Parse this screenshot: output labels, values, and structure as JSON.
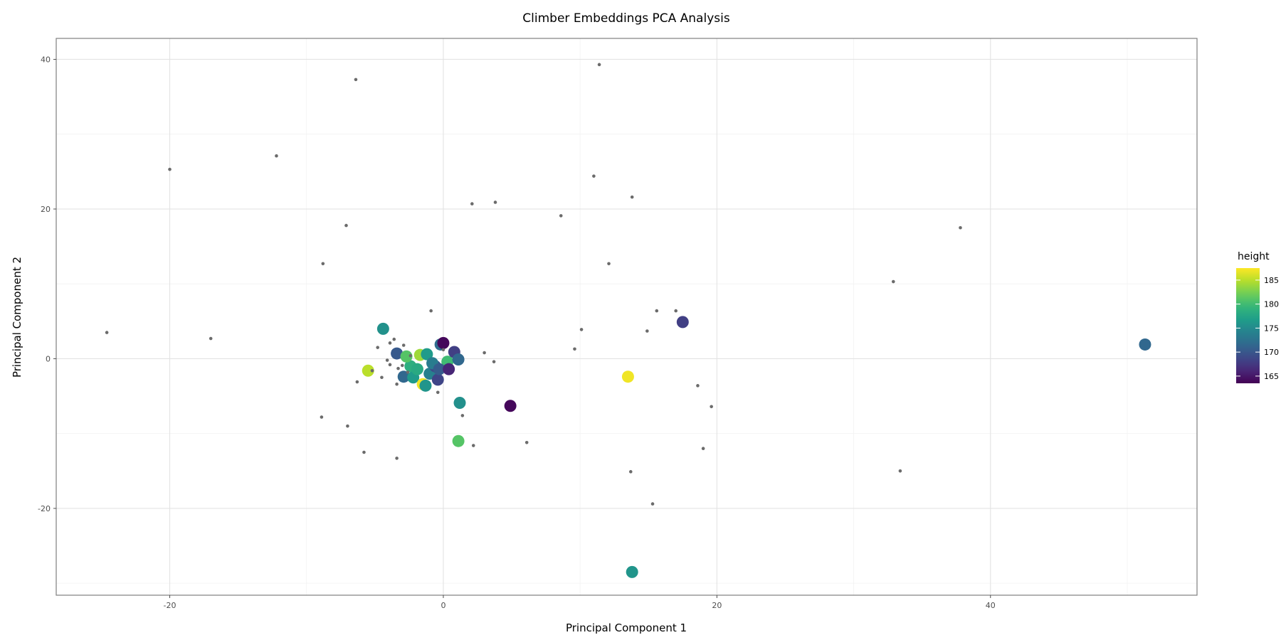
{
  "chart_data": {
    "type": "scatter",
    "title": "Climber Embeddings PCA Analysis",
    "xlabel": "Principal Component 1",
    "ylabel": "Principal Component 2",
    "xlim": [
      -28.3,
      55.1
    ],
    "ylim": [
      -31.6,
      42.8
    ],
    "x_ticks": [
      -20,
      0,
      20,
      40
    ],
    "y_ticks": [
      -20,
      0,
      20,
      40
    ],
    "x_tick_labels": [
      "-20",
      "0",
      "20",
      "40"
    ],
    "y_tick_labels": [
      "-20",
      "0",
      "20",
      "40"
    ],
    "grid": true,
    "background_points_color": "#6b6b6b",
    "legend": {
      "title": "height",
      "position": "right",
      "ticks": [
        165,
        170,
        175,
        180,
        185
      ],
      "tick_labels": [
        "165",
        "170",
        "175",
        "180",
        "185"
      ],
      "range": [
        163.5,
        187.5
      ],
      "colormap": "viridis"
    },
    "series": [
      {
        "name": "",
        "marker": "small-grey",
        "x": [
          -24.6,
          -20,
          -12.2,
          -17,
          -6.4,
          -7.1,
          -8.8,
          -8.9,
          -7,
          -5.8,
          -3.4,
          -6.3,
          -3.4,
          -5.2,
          -4.8,
          -4.5,
          -3.9,
          -4.1,
          -3.6,
          -3.9,
          -3.3,
          -2.9,
          -2.6,
          -2.4,
          -3,
          -0.9,
          -0.4,
          0,
          1.4,
          2.2,
          3,
          3.7,
          2.1,
          3.8,
          6.1,
          8.6,
          9.6,
          10.1,
          11,
          11.4,
          12.1,
          13.7,
          13.8,
          14.9,
          15.6,
          15.3,
          17,
          18.6,
          19,
          19.6,
          32.9,
          33.4,
          37.8
        ],
        "y": [
          3.5,
          25.3,
          27.1,
          2.7,
          37.3,
          17.8,
          12.7,
          -7.8,
          -9,
          -12.5,
          -13.3,
          -3.1,
          -3.4,
          -1.6,
          1.5,
          -2.5,
          2.1,
          -0.2,
          2.6,
          -0.8,
          -1.3,
          1.8,
          -1.8,
          0.4,
          -0.9,
          6.4,
          -4.5,
          1.2,
          -7.6,
          -11.6,
          0.8,
          -0.4,
          20.7,
          20.9,
          -11.2,
          19.1,
          1.3,
          3.9,
          24.4,
          39.3,
          12.7,
          -15.1,
          21.6,
          3.7,
          6.4,
          -19.4,
          6.4,
          -3.6,
          -12,
          -6.4,
          10.3,
          -15,
          17.5
        ]
      },
      {
        "name": "",
        "marker": "large-colored",
        "x": [
          -4.4,
          -3.4,
          -2.9,
          -2.4,
          -2.2,
          -1.7,
          -1.5,
          -1.3,
          -1,
          -0.6,
          -0.4,
          -0.2,
          0,
          0.3,
          0.8,
          1.1,
          1.2,
          1.1,
          4.9,
          13.5,
          17.5,
          13.8,
          51.3,
          -5.5,
          -1.9,
          -2.7,
          -1.2,
          -0.8,
          -0.3,
          0.4
        ],
        "y": [
          4,
          0.7,
          -2.4,
          -1,
          -2.5,
          0.5,
          -3.4,
          -3.6,
          -2,
          -1,
          -2.8,
          1.9,
          2.1,
          -0.4,
          0.9,
          -0.1,
          -5.9,
          -11,
          -6.3,
          -2.4,
          4.9,
          -28.5,
          1.9,
          -1.6,
          -1.4,
          0.3,
          0.6,
          -0.6,
          -1.4,
          -1.4
        ],
        "height": [
          175.6,
          170.2,
          171.5,
          178.5,
          176.5,
          184,
          187,
          176,
          174,
          169,
          168.5,
          172,
          164,
          180,
          168,
          171.5,
          175.5,
          181,
          164,
          187,
          168,
          176,
          171.5,
          185,
          178,
          181,
          176.5,
          173.5,
          170.5,
          166
        ]
      }
    ]
  }
}
